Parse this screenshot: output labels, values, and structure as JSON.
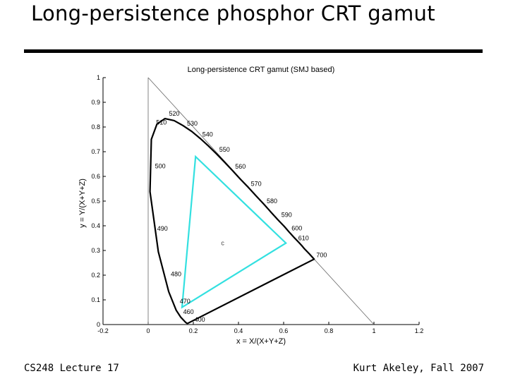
{
  "slide": {
    "title": "Long-persistence phosphor CRT gamut",
    "footer_left": "CS248 Lecture 17",
    "footer_right": "Kurt Akeley, Fall 2007"
  },
  "colors": {
    "gamut": "#33e0e0",
    "locus": "#000000",
    "reference": "#666666"
  },
  "chart_data": {
    "type": "line",
    "title": "Long-persistence CRT gamut (SMJ based)",
    "xlabel": "x = X/(X+Y+Z)",
    "ylabel": "y = Y/(X+Y+Z)",
    "xlim": [
      -0.2,
      1.2
    ],
    "ylim": [
      0,
      1
    ],
    "grid": false,
    "x_ticks": [
      {
        "value": -0.2,
        "label": "-0.2"
      },
      {
        "value": 0,
        "label": "0"
      },
      {
        "value": 0.2,
        "label": "0.2"
      },
      {
        "value": 0.4,
        "label": "0.4"
      },
      {
        "value": 0.6,
        "label": "0.6"
      },
      {
        "value": 0.8,
        "label": "0.8"
      },
      {
        "value": 1,
        "label": "1"
      },
      {
        "value": 1.2,
        "label": "1.2"
      }
    ],
    "y_ticks": [
      {
        "value": 0,
        "label": "0"
      },
      {
        "value": 0.1,
        "label": "0.1"
      },
      {
        "value": 0.2,
        "label": "0.2"
      },
      {
        "value": 0.3,
        "label": "0.3"
      },
      {
        "value": 0.4,
        "label": "0.4"
      },
      {
        "value": 0.5,
        "label": "0.5"
      },
      {
        "value": 0.6,
        "label": "0.6"
      },
      {
        "value": 0.7,
        "label": "0.7"
      },
      {
        "value": 0.8,
        "label": "0.8"
      },
      {
        "value": 0.9,
        "label": "0.9"
      },
      {
        "value": 1,
        "label": "1"
      }
    ],
    "spectral_locus": [
      [
        0.175,
        0.005
      ],
      [
        0.174,
        0.005
      ],
      [
        0.172,
        0.005
      ],
      [
        0.166,
        0.009
      ],
      [
        0.144,
        0.03
      ],
      [
        0.124,
        0.058
      ],
      [
        0.091,
        0.133
      ],
      [
        0.045,
        0.295
      ],
      [
        0.008,
        0.538
      ],
      [
        0.014,
        0.75
      ],
      [
        0.039,
        0.812
      ],
      [
        0.074,
        0.834
      ],
      [
        0.115,
        0.826
      ],
      [
        0.154,
        0.806
      ],
      [
        0.193,
        0.782
      ],
      [
        0.23,
        0.754
      ],
      [
        0.266,
        0.724
      ],
      [
        0.302,
        0.692
      ],
      [
        0.337,
        0.659
      ],
      [
        0.373,
        0.624
      ],
      [
        0.408,
        0.589
      ],
      [
        0.444,
        0.555
      ],
      [
        0.479,
        0.52
      ],
      [
        0.513,
        0.487
      ],
      [
        0.545,
        0.454
      ],
      [
        0.575,
        0.424
      ],
      [
        0.603,
        0.397
      ],
      [
        0.627,
        0.372
      ],
      [
        0.648,
        0.351
      ],
      [
        0.666,
        0.334
      ],
      [
        0.68,
        0.32
      ],
      [
        0.691,
        0.308
      ],
      [
        0.714,
        0.286
      ],
      [
        0.735,
        0.265
      ]
    ],
    "reference_lines": [
      {
        "name": "x+y=1",
        "points": [
          [
            0,
            1
          ],
          [
            1,
            0
          ]
        ]
      },
      {
        "name": "x=0",
        "points": [
          [
            0,
            0
          ],
          [
            0,
            1
          ]
        ]
      }
    ],
    "gamut_triangle": {
      "name": "long-persistence phosphor gamut",
      "points": [
        [
          0.21,
          0.68
        ],
        [
          0.61,
          0.33
        ],
        [
          0.15,
          0.07
        ]
      ]
    },
    "white_point": {
      "x": 0.33,
      "y": 0.33,
      "label": "c"
    },
    "wavelength_labels": [
      {
        "label": "520",
        "x": 0.092,
        "y": 0.855
      },
      {
        "label": "530",
        "x": 0.172,
        "y": 0.815
      },
      {
        "label": "510",
        "x": 0.035,
        "y": 0.818
      },
      {
        "label": "540",
        "x": 0.24,
        "y": 0.77
      },
      {
        "label": "550",
        "x": 0.315,
        "y": 0.708
      },
      {
        "label": "560",
        "x": 0.385,
        "y": 0.64
      },
      {
        "label": "500",
        "x": 0.03,
        "y": 0.642
      },
      {
        "label": "570",
        "x": 0.455,
        "y": 0.57
      },
      {
        "label": "580",
        "x": 0.525,
        "y": 0.5
      },
      {
        "label": "590",
        "x": 0.59,
        "y": 0.445
      },
      {
        "label": "600",
        "x": 0.635,
        "y": 0.39
      },
      {
        "label": "610",
        "x": 0.665,
        "y": 0.35
      },
      {
        "label": "490",
        "x": 0.04,
        "y": 0.388
      },
      {
        "label": "700",
        "x": 0.745,
        "y": 0.282
      },
      {
        "label": "480",
        "x": 0.1,
        "y": 0.205
      },
      {
        "label": "470",
        "x": 0.14,
        "y": 0.095
      },
      {
        "label": "460",
        "x": 0.155,
        "y": 0.052
      },
      {
        "label": "400",
        "x": 0.205,
        "y": 0.02
      }
    ]
  }
}
